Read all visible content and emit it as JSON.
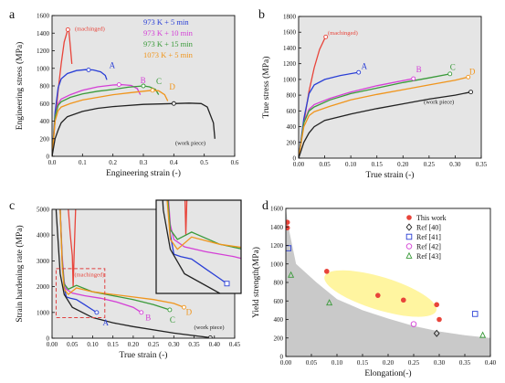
{
  "colors": {
    "machined": "#e8443a",
    "c973_5": "#2a3fd6",
    "c973_10": "#d43fd6",
    "c973_15": "#3a9a3a",
    "c1073_5": "#f0951c",
    "work_piece": "#222222",
    "plot_bg": "#e5e5e5",
    "highlight": "#fff5a0",
    "red_box": "#e04040"
  },
  "chart_data": [
    {
      "type": "line",
      "panel": "a",
      "xlabel": "Engineering strain (-)",
      "ylabel": "Engineering stress (MPa)",
      "xlim": [
        0,
        0.6
      ],
      "ylim": [
        0,
        1600
      ],
      "xticks": [
        "0.0",
        "0.1",
        "0.2",
        "0.3",
        "0.4",
        "0.5",
        "0.6"
      ],
      "yticks": [
        "0",
        "200",
        "400",
        "600",
        "800",
        "1000",
        "1200",
        "1400",
        "1600"
      ],
      "legend": [
        "973 K + 5 min",
        "973 K + 10 min",
        "973 K + 15 min",
        "1073 K + 5 min"
      ],
      "annotations": [
        "(machinged)",
        "A",
        "B",
        "C",
        "D",
        "(work piece)"
      ],
      "series": [
        {
          "name": "(machinged)",
          "color": "machined",
          "x": [
            0,
            0.01,
            0.02,
            0.03,
            0.04,
            0.05,
            0.055,
            0.06,
            0.065
          ],
          "y": [
            0,
            400,
            750,
            1050,
            1300,
            1420,
            1440,
            1250,
            1050
          ]
        },
        {
          "name": "973 K + 5 min",
          "color": "c973_5",
          "x": [
            0,
            0.01,
            0.02,
            0.03,
            0.05,
            0.08,
            0.11,
            0.135,
            0.16,
            0.175,
            0.18
          ],
          "y": [
            0,
            500,
            780,
            880,
            940,
            975,
            985,
            982,
            960,
            920,
            870
          ]
        },
        {
          "name": "973 K + 10 min",
          "color": "c973_10",
          "x": [
            0,
            0.01,
            0.02,
            0.03,
            0.06,
            0.1,
            0.15,
            0.2,
            0.23,
            0.26,
            0.28,
            0.29
          ],
          "y": [
            0,
            450,
            600,
            650,
            700,
            750,
            790,
            810,
            815,
            805,
            770,
            700
          ]
        },
        {
          "name": "973 K + 15 min",
          "color": "c973_15",
          "x": [
            0,
            0.01,
            0.02,
            0.03,
            0.06,
            0.1,
            0.15,
            0.2,
            0.25,
            0.3,
            0.32,
            0.34,
            0.35
          ],
          "y": [
            0,
            450,
            580,
            620,
            670,
            710,
            740,
            760,
            785,
            800,
            790,
            760,
            700
          ]
        },
        {
          "name": "1073 K + 5 min",
          "color": "c1073_5",
          "x": [
            0,
            0.01,
            0.02,
            0.03,
            0.06,
            0.1,
            0.15,
            0.2,
            0.25,
            0.3,
            0.33,
            0.35,
            0.37,
            0.38
          ],
          "y": [
            0,
            400,
            520,
            560,
            600,
            640,
            670,
            700,
            720,
            740,
            750,
            745,
            700,
            630
          ]
        },
        {
          "name": "(work piece)",
          "color": "work_piece",
          "x": [
            0,
            0.01,
            0.02,
            0.03,
            0.05,
            0.1,
            0.15,
            0.2,
            0.3,
            0.4,
            0.45,
            0.49,
            0.51,
            0.53,
            0.535
          ],
          "y": [
            0,
            200,
            300,
            380,
            450,
            510,
            545,
            565,
            590,
            600,
            605,
            600,
            560,
            380,
            200
          ]
        }
      ],
      "end_markers": [
        {
          "series": "973 K + 5 min",
          "x": 0.12,
          "y": 982
        },
        {
          "series": "973 K + 10 min",
          "x": 0.22,
          "y": 815
        },
        {
          "series": "973 K + 15 min",
          "x": 0.3,
          "y": 800
        },
        {
          "series": "1073 K + 5 min",
          "x": 0.33,
          "y": 750
        },
        {
          "series": "(work piece)",
          "x": 0.4,
          "y": 600
        },
        {
          "series": "(machinged)",
          "x": 0.052,
          "y": 1440
        }
      ]
    },
    {
      "type": "line",
      "panel": "b",
      "xlabel": "True strain (-)",
      "ylabel": "True stress (MPa)",
      "xlim": [
        0,
        0.35
      ],
      "ylim": [
        0,
        1800
      ],
      "xticks": [
        "0.00",
        "0.05",
        "0.10",
        "0.15",
        "0.20",
        "0.25",
        "0.30",
        "0.35"
      ],
      "yticks": [
        "0",
        "200",
        "400",
        "600",
        "800",
        "1000",
        "1200",
        "1400",
        "1600",
        "1800"
      ],
      "annotations": [
        "(machinged)",
        "A",
        "B",
        "C",
        "D",
        "(work piece)"
      ],
      "series": [
        {
          "name": "(machinged)",
          "color": "machined",
          "x": [
            0,
            0.01,
            0.02,
            0.03,
            0.04,
            0.05,
            0.052
          ],
          "y": [
            0,
            450,
            850,
            1150,
            1380,
            1520,
            1540
          ]
        },
        {
          "name": "973 K + 5 min",
          "color": "c973_5",
          "x": [
            0,
            0.01,
            0.02,
            0.03,
            0.05,
            0.08,
            0.115
          ],
          "y": [
            0,
            500,
            820,
            930,
            1000,
            1050,
            1090
          ]
        },
        {
          "name": "973 K + 10 min",
          "color": "c973_10",
          "x": [
            0,
            0.01,
            0.02,
            0.03,
            0.06,
            0.1,
            0.15,
            0.22
          ],
          "y": [
            0,
            450,
            620,
            680,
            760,
            840,
            920,
            1010
          ]
        },
        {
          "name": "973 K + 15 min",
          "color": "c973_15",
          "x": [
            0,
            0.01,
            0.02,
            0.03,
            0.06,
            0.1,
            0.15,
            0.2,
            0.25,
            0.29
          ],
          "y": [
            0,
            450,
            600,
            650,
            740,
            820,
            890,
            960,
            1020,
            1070
          ]
        },
        {
          "name": "1073 K + 5 min",
          "color": "c1073_5",
          "x": [
            0,
            0.01,
            0.02,
            0.03,
            0.06,
            0.1,
            0.15,
            0.2,
            0.25,
            0.3,
            0.325
          ],
          "y": [
            0,
            400,
            540,
            590,
            660,
            740,
            810,
            870,
            930,
            990,
            1030
          ]
        },
        {
          "name": "(work piece)",
          "color": "work_piece",
          "x": [
            0,
            0.01,
            0.02,
            0.03,
            0.05,
            0.1,
            0.15,
            0.2,
            0.25,
            0.3,
            0.33
          ],
          "y": [
            0,
            200,
            320,
            400,
            480,
            560,
            630,
            690,
            750,
            800,
            840
          ]
        }
      ],
      "end_markers": [
        {
          "series": "(machinged)",
          "x": 0.052,
          "y": 1540
        },
        {
          "series": "973 K + 5 min",
          "x": 0.115,
          "y": 1090
        },
        {
          "series": "973 K + 10 min",
          "x": 0.22,
          "y": 1010
        },
        {
          "series": "973 K + 15 min",
          "x": 0.29,
          "y": 1070
        },
        {
          "series": "1073 K + 5 min",
          "x": 0.325,
          "y": 1030
        },
        {
          "series": "(work piece)",
          "x": 0.33,
          "y": 840
        }
      ]
    },
    {
      "type": "line",
      "panel": "c",
      "xlabel": "True strain (-)",
      "ylabel": "Strain hardening rate (MPa)",
      "xlim": [
        0,
        0.45
      ],
      "ylim": [
        0,
        5000
      ],
      "xticks": [
        "0.00",
        "0.05",
        "0.10",
        "0.15",
        "0.20",
        "0.25",
        "0.30",
        "0.35",
        "0.40",
        "0.45"
      ],
      "yticks": [
        "0",
        "1000",
        "2000",
        "3000",
        "4000",
        "5000"
      ],
      "annotations": [
        "(machinged)",
        "A",
        "B",
        "C",
        "D",
        "(work piece)"
      ],
      "series": [
        {
          "name": "(machinged)",
          "color": "machined",
          "x": [
            0.04,
            0.045,
            0.05,
            0.052,
            0.055,
            0.058
          ],
          "y": [
            5000,
            4000,
            3200,
            2000,
            3500,
            5000
          ]
        },
        {
          "name": "973 K + 5 min",
          "color": "c973_5",
          "x": [
            0.02,
            0.025,
            0.03,
            0.035,
            0.045,
            0.06,
            0.08,
            0.1,
            0.11
          ],
          "y": [
            5000,
            3000,
            2000,
            1600,
            1550,
            1500,
            1300,
            1100,
            1000
          ]
        },
        {
          "name": "973 K + 10 min",
          "color": "c973_10",
          "x": [
            0.02,
            0.025,
            0.03,
            0.035,
            0.05,
            0.08,
            0.12,
            0.16,
            0.2,
            0.22
          ],
          "y": [
            5000,
            3200,
            2200,
            1900,
            1750,
            1650,
            1550,
            1400,
            1200,
            1000
          ]
        },
        {
          "name": "973 K + 15 min",
          "color": "c973_15",
          "x": [
            0.02,
            0.025,
            0.03,
            0.04,
            0.06,
            0.1,
            0.15,
            0.2,
            0.25,
            0.29
          ],
          "y": [
            5000,
            3000,
            2100,
            1900,
            2050,
            1800,
            1650,
            1500,
            1300,
            1100
          ]
        },
        {
          "name": "1073 K + 5 min",
          "color": "c1073_5",
          "x": [
            0.02,
            0.025,
            0.03,
            0.04,
            0.06,
            0.1,
            0.15,
            0.2,
            0.25,
            0.3,
            0.325
          ],
          "y": [
            5000,
            2800,
            1900,
            1700,
            1950,
            1800,
            1700,
            1600,
            1500,
            1350,
            1200
          ]
        },
        {
          "name": "(work piece)",
          "color": "work_piece",
          "x": [
            0.01,
            0.02,
            0.03,
            0.05,
            0.1,
            0.15,
            0.2,
            0.3,
            0.39
          ],
          "y": [
            5000,
            2500,
            1700,
            1200,
            800,
            600,
            450,
            200,
            20
          ]
        }
      ],
      "end_markers": [
        {
          "series": "973 K + 5 min",
          "x": 0.11,
          "y": 1000
        },
        {
          "series": "973 K + 10 min",
          "x": 0.22,
          "y": 1000
        },
        {
          "series": "973 K + 15 min",
          "x": 0.29,
          "y": 1100
        },
        {
          "series": "1073 K + 5 min",
          "x": 0.325,
          "y": 1200
        },
        {
          "series": "(work piece)",
          "x": 0.39,
          "y": 20
        }
      ],
      "zoom_box": {
        "xlim": [
          0.01,
          0.13
        ],
        "ylim": [
          800,
          2700
        ]
      }
    },
    {
      "type": "scatter",
      "panel": "d",
      "xlabel": "Elongation(-)",
      "ylabel": "Yield strength(MPa)",
      "xlim": [
        0,
        0.4
      ],
      "ylim": [
        0,
        1600
      ],
      "xticks": [
        "0.00",
        "0.05",
        "0.10",
        "0.15",
        "0.20",
        "0.25",
        "0.30",
        "0.35",
        "0.40"
      ],
      "yticks": [
        "0",
        "200",
        "400",
        "600",
        "800",
        "1000",
        "1200",
        "1400",
        "1600"
      ],
      "series": [
        {
          "name": "This work",
          "marker": "circle-filled",
          "color": "#e8443a",
          "x": [
            0.003,
            0.003,
            0.08,
            0.18,
            0.23,
            0.295,
            0.3
          ],
          "y": [
            1450,
            1390,
            920,
            660,
            610,
            560,
            400
          ]
        },
        {
          "name": "Ref [40]",
          "marker": "diamond",
          "color": "#222222",
          "x": [
            0.295
          ],
          "y": [
            250
          ]
        },
        {
          "name": "Ref [41]",
          "marker": "square",
          "color": "#2a3fd6",
          "x": [
            0.005,
            0.37
          ],
          "y": [
            1170,
            460
          ]
        },
        {
          "name": "Ref [42]",
          "marker": "circle",
          "color": "#d43fd6",
          "x": [
            0.25
          ],
          "y": [
            350
          ]
        },
        {
          "name": "Ref [43]",
          "marker": "triangle",
          "color": "#3a9a3a",
          "x": [
            0.01,
            0.085,
            0.385
          ],
          "y": [
            880,
            580,
            230
          ]
        }
      ]
    }
  ],
  "panels": {
    "a": {
      "label": "a"
    },
    "b": {
      "label": "b"
    },
    "c": {
      "label": "c"
    },
    "d": {
      "label": "d"
    }
  }
}
